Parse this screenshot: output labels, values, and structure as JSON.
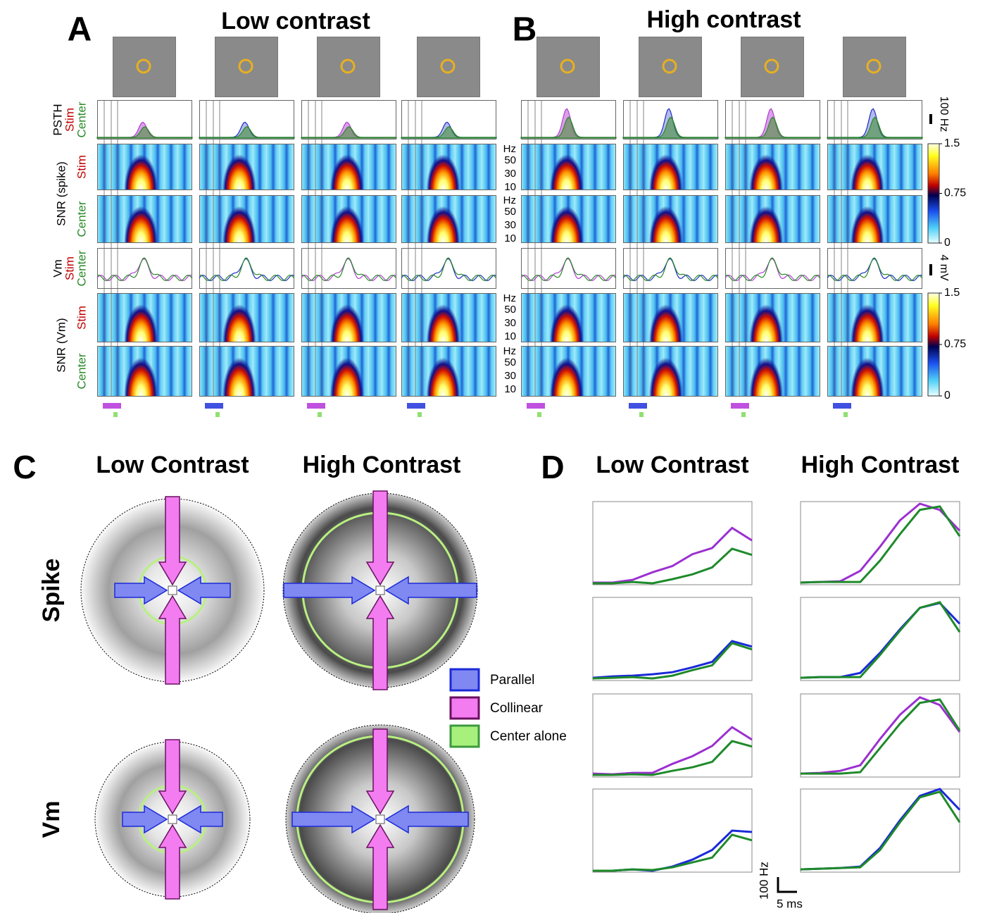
{
  "panel_a": {
    "letter": "A",
    "title": "Low contrast"
  },
  "panel_b": {
    "letter": "B",
    "title": "High contrast"
  },
  "side_labels": [
    "PSTH",
    "Stim",
    "Center",
    "SNR (spike)",
    "Stim",
    "Center",
    "Vm",
    "Stim",
    "Center",
    "SNR (Vm)",
    "Stim",
    "Center"
  ],
  "psth_scale": "100 Hz",
  "vm_scale": "4 mV",
  "freq_axes": [
    {
      "unit": "Hz",
      "ticks": [
        50,
        30,
        10
      ]
    },
    {
      "unit": "Hz",
      "ticks": [
        50,
        30,
        10
      ]
    },
    {
      "unit": "Hz",
      "ticks": [
        50,
        30,
        10
      ]
    },
    {
      "unit": "Hz",
      "ticks": [
        50,
        30,
        10
      ]
    }
  ],
  "colorbars": [
    {
      "clim": [
        0,
        1.5
      ],
      "ticks": [
        1.5,
        0.75,
        0
      ]
    },
    {
      "clim": [
        0,
        1.5
      ],
      "ticks": [
        1.5,
        0.75,
        0
      ]
    }
  ],
  "panel_c": {
    "letter": "C",
    "columns": [
      "Low Contrast",
      "High Contrast"
    ],
    "rows": [
      "Spike",
      "Vm"
    ]
  },
  "legend": [
    "Parallel",
    "Collinear",
    "Center alone"
  ],
  "panel_d": {
    "letter": "D",
    "columns": [
      "Low Contrast",
      "High Contrast"
    ],
    "scale_y": "100 Hz",
    "scale_x": "5 ms"
  },
  "chart_data": [
    {
      "type": "line",
      "x": [
        0,
        5,
        10,
        15,
        20,
        25,
        30,
        35,
        40
      ],
      "xlim": [
        0,
        40
      ],
      "ylim": [
        0,
        600
      ],
      "series": [
        {
          "color": "#9b30d0",
          "values": [
            15,
            15,
            35,
            90,
            135,
            220,
            265,
            410,
            320
          ]
        },
        {
          "color": "#1e8a2a",
          "values": [
            10,
            10,
            20,
            10,
            40,
            75,
            125,
            260,
            215
          ]
        }
      ]
    },
    {
      "type": "line",
      "x": [
        0,
        5,
        10,
        15,
        20,
        25,
        30,
        35,
        40
      ],
      "xlim": [
        0,
        40
      ],
      "ylim": [
        0,
        600
      ],
      "series": [
        {
          "color": "#9b30d0",
          "values": [
            15,
            20,
            25,
            100,
            275,
            465,
            585,
            540,
            390
          ]
        },
        {
          "color": "#1e8a2a",
          "values": [
            15,
            20,
            20,
            20,
            175,
            365,
            540,
            565,
            350
          ]
        }
      ]
    },
    {
      "type": "line",
      "x": [
        0,
        5,
        10,
        15,
        20,
        25,
        30,
        35,
        40
      ],
      "xlim": [
        0,
        40
      ],
      "ylim": [
        0,
        600
      ],
      "series": [
        {
          "color": "#1a2ad8",
          "values": [
            20,
            30,
            35,
            45,
            60,
            95,
            135,
            285,
            245
          ]
        },
        {
          "color": "#1e8a2a",
          "values": [
            15,
            20,
            25,
            15,
            35,
            75,
            110,
            270,
            225
          ]
        }
      ]
    },
    {
      "type": "line",
      "x": [
        0,
        5,
        10,
        15,
        20,
        25,
        30,
        35,
        40
      ],
      "xlim": [
        0,
        40
      ],
      "ylim": [
        0,
        600
      ],
      "series": [
        {
          "color": "#1a2ad8",
          "values": [
            20,
            25,
            25,
            55,
            200,
            370,
            525,
            560,
            410
          ]
        },
        {
          "color": "#1e8a2a",
          "values": [
            20,
            25,
            25,
            25,
            185,
            360,
            525,
            565,
            350
          ]
        }
      ]
    },
    {
      "type": "line",
      "x": [
        0,
        5,
        10,
        15,
        20,
        25,
        30,
        35,
        40
      ],
      "xlim": [
        0,
        40
      ],
      "ylim": [
        0,
        600
      ],
      "series": [
        {
          "color": "#9b30d0",
          "values": [
            25,
            20,
            30,
            30,
            95,
            150,
            225,
            360,
            270
          ]
        },
        {
          "color": "#1e8a2a",
          "values": [
            15,
            15,
            20,
            15,
            45,
            70,
            110,
            260,
            220
          ]
        }
      ]
    },
    {
      "type": "line",
      "x": [
        0,
        5,
        10,
        15,
        20,
        25,
        30,
        35,
        40
      ],
      "xlim": [
        0,
        40
      ],
      "ylim": [
        0,
        600
      ],
      "series": [
        {
          "color": "#9b30d0",
          "values": [
            25,
            30,
            45,
            85,
            275,
            450,
            575,
            520,
            325
          ]
        },
        {
          "color": "#1e8a2a",
          "values": [
            25,
            25,
            25,
            35,
            210,
            385,
            535,
            560,
            335
          ]
        }
      ]
    },
    {
      "type": "line",
      "x": [
        0,
        5,
        10,
        15,
        20,
        25,
        30,
        35,
        40
      ],
      "xlim": [
        0,
        40
      ],
      "ylim": [
        0,
        600
      ],
      "series": [
        {
          "color": "#1a2ad8",
          "values": [
            10,
            10,
            20,
            10,
            40,
            90,
            160,
            300,
            290
          ]
        },
        {
          "color": "#1e8a2a",
          "values": [
            10,
            10,
            20,
            15,
            35,
            70,
            105,
            270,
            230
          ]
        }
      ]
    },
    {
      "type": "line",
      "x": [
        0,
        5,
        10,
        15,
        20,
        25,
        30,
        35,
        40
      ],
      "xlim": [
        0,
        40
      ],
      "ylim": [
        0,
        600
      ],
      "series": [
        {
          "color": "#1a2ad8",
          "values": [
            20,
            25,
            30,
            40,
            175,
            375,
            550,
            600,
            450
          ]
        },
        {
          "color": "#1e8a2a",
          "values": [
            20,
            25,
            30,
            35,
            160,
            360,
            540,
            580,
            360
          ]
        }
      ]
    }
  ]
}
